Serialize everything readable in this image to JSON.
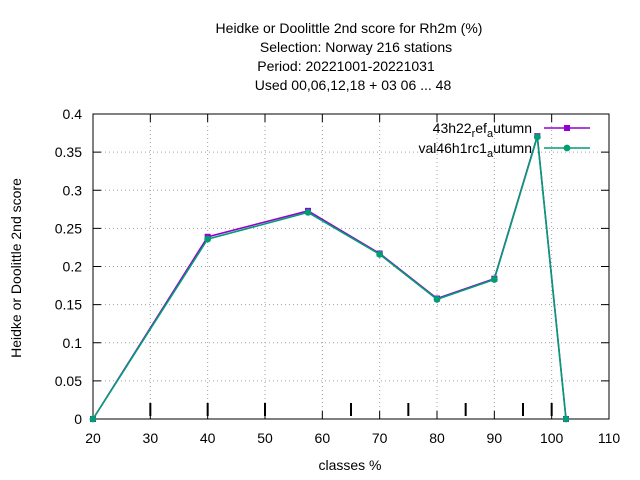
{
  "chart_data": {
    "type": "line",
    "title_lines": [
      "Heidke or Doolittle 2nd score  for Rh2m (%)",
      "Selection: Norway    216 stations",
      "Period: 20221001-20221031",
      "Used  00,06,12,18  + 03 06 ... 48"
    ],
    "xlabel": "classes %",
    "ylabel": "Heidke or Doolittle 2nd score",
    "xlim": [
      20,
      110
    ],
    "ylim": [
      0,
      0.4
    ],
    "xticks": [
      20,
      30,
      40,
      50,
      60,
      70,
      80,
      90,
      100,
      110
    ],
    "yticks": [
      0,
      0.05,
      0.1,
      0.15,
      0.2,
      0.25,
      0.3,
      0.35,
      0.4
    ],
    "ytick_labels": [
      "0",
      "0.05",
      "0.1",
      "0.15",
      "0.2",
      "0.25",
      "0.3",
      "0.35",
      "0.4"
    ],
    "class_marks": [
      30,
      40,
      50,
      65,
      75,
      85,
      95,
      100
    ],
    "grid": true,
    "legend_position": "top-right",
    "series": [
      {
        "name": "43h22_ref_autumn",
        "legend_parts": [
          "43h22",
          "r",
          "ef",
          "a",
          "utumn"
        ],
        "color": "#9400d3",
        "marker": "square",
        "x": [
          20,
          40,
          57.5,
          70,
          80,
          90,
          97.5,
          102.5
        ],
        "y": [
          0,
          0.239,
          0.273,
          0.217,
          0.158,
          0.184,
          0.371,
          0
        ]
      },
      {
        "name": "val46h1rc1_autumn",
        "legend_parts": [
          "val46h1rc1",
          "a",
          "utumn"
        ],
        "color": "#009e73",
        "marker": "circle",
        "x": [
          20,
          40,
          57.5,
          70,
          80,
          90,
          97.5,
          102.5
        ],
        "y": [
          0,
          0.236,
          0.271,
          0.216,
          0.157,
          0.183,
          0.37,
          0
        ]
      }
    ]
  }
}
